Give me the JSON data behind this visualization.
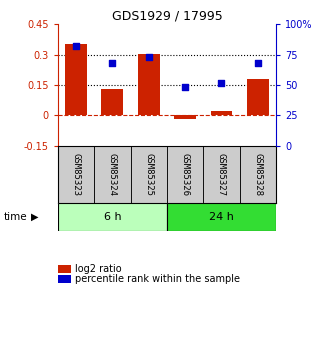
{
  "title": "GDS1929 / 17995",
  "samples": [
    "GSM85323",
    "GSM85324",
    "GSM85325",
    "GSM85326",
    "GSM85327",
    "GSM85328"
  ],
  "log2_ratio": [
    0.35,
    0.13,
    0.305,
    -0.018,
    0.02,
    0.18
  ],
  "percentile_rank": [
    82,
    68,
    73,
    48,
    52,
    68
  ],
  "groups": [
    {
      "label": "6 h",
      "indices": [
        0,
        1,
        2
      ],
      "color": "#bbffbb"
    },
    {
      "label": "24 h",
      "indices": [
        3,
        4,
        5
      ],
      "color": "#33dd33"
    }
  ],
  "bar_color": "#cc2200",
  "dot_color": "#0000cc",
  "left_ylim": [
    -0.15,
    0.45
  ],
  "right_ylim": [
    0,
    100
  ],
  "left_yticks": [
    -0.15,
    0,
    0.15,
    0.3,
    0.45
  ],
  "right_yticks": [
    0,
    25,
    50,
    75,
    100
  ],
  "hlines": [
    0.15,
    0.3
  ],
  "background_color": "#ffffff",
  "label_log2": "log2 ratio",
  "label_percentile": "percentile rank within the sample",
  "time_label": "time",
  "bar_width": 0.6
}
